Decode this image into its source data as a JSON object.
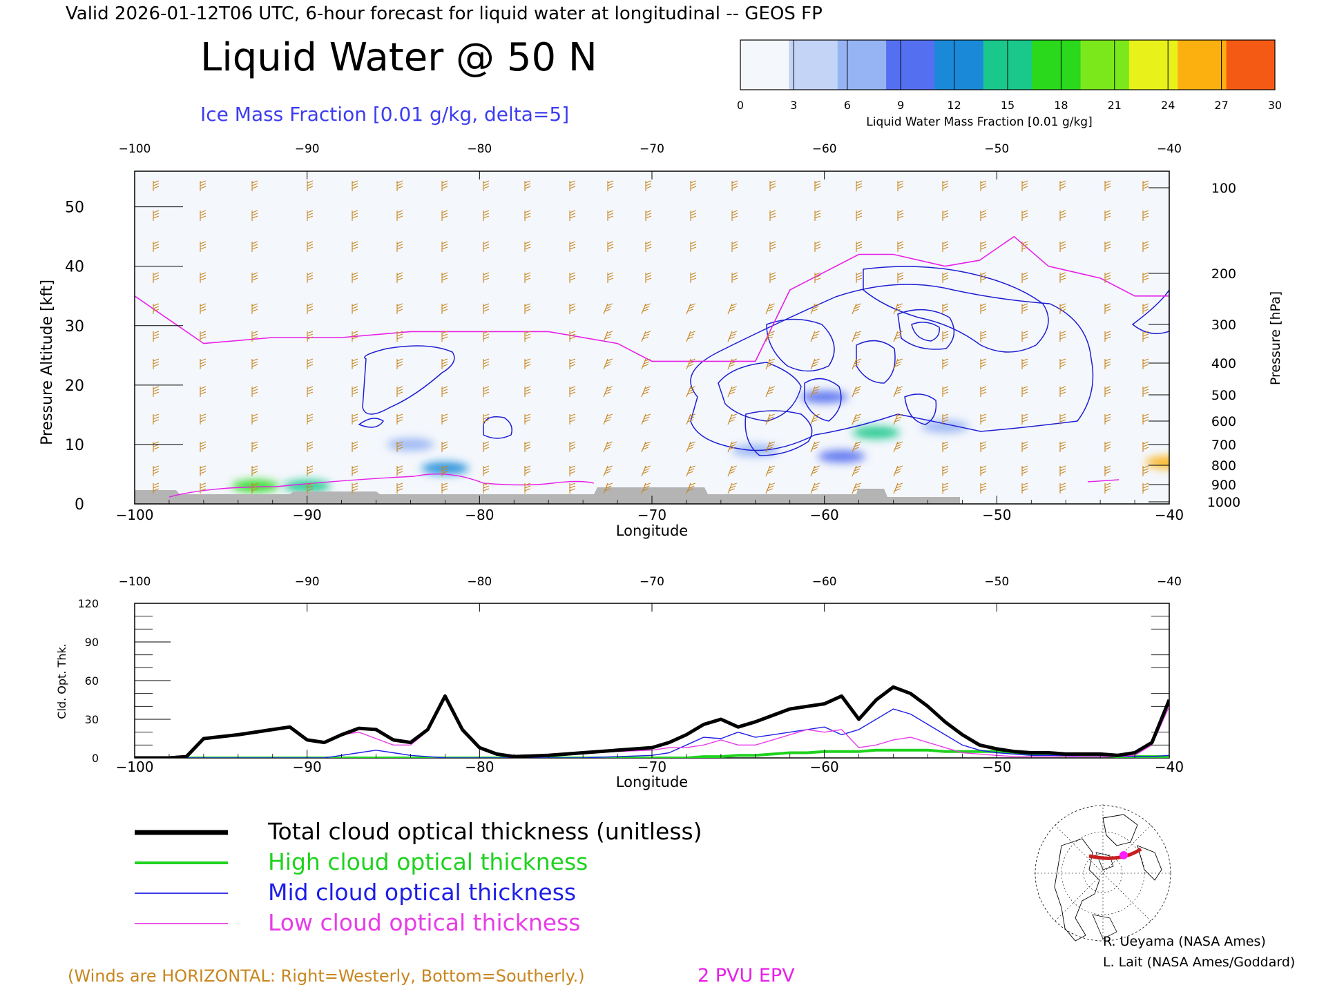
{
  "header": {
    "valid_line": "Valid 2026-01-12T06 UTC, 6-hour forecast for liquid water at longitudinal -- GEOS FP",
    "main_title": "Liquid Water @ 50 N",
    "subtitle": "Ice Mass Fraction [0.01 g/kg, delta=5]"
  },
  "colorbar": {
    "ticks": [
      "0",
      "3",
      "6",
      "9",
      "12",
      "15",
      "18",
      "21",
      "24",
      "27",
      "30"
    ],
    "label": "Liquid Water Mass Fraction [0.01 g/kg]",
    "colors": [
      "#f4f7fc",
      "#c3d4f7",
      "#96b4f4",
      "#5470f0",
      "#1a8ad8",
      "#19c88a",
      "#2ad81c",
      "#7be81c",
      "#e8f21a",
      "#fbb010",
      "#f55a14"
    ]
  },
  "footer": {
    "winds_note": "(Winds are HORIZONTAL: Right=Westerly, Bottom=Southerly.)",
    "epv_label": "2 PVU EPV",
    "credit1": "R. Ueyama (NASA Ames)",
    "credit2": "L. Lait (NASA Ames/Goddard)"
  },
  "colors": {
    "wind_barb": "#c8861e",
    "epv": "#e81ee8",
    "ice": "#1e1ed2",
    "total": "#000000",
    "high": "#1ed21e",
    "mid": "#1e1ee6",
    "low": "#e83ce8",
    "ground": "#b4b4b4"
  },
  "chart_data": [
    {
      "type": "heatmap",
      "title": "Liquid Water @ 50 N",
      "xlabel": "Longitude",
      "ylabel": "Pressure Altitude [kft]",
      "ylabel_right": "Pressure [hPa]",
      "xlim": [
        -100,
        -40
      ],
      "ylim": [
        0,
        56
      ],
      "x_ticks": [
        "-100",
        "-90",
        "-80",
        "-70",
        "-60",
        "-50",
        "-40"
      ],
      "y_ticks": [
        "0",
        "10",
        "20",
        "30",
        "40",
        "50"
      ],
      "right_ticks": [
        "100",
        "200",
        "300",
        "400",
        "500",
        "600",
        "700",
        "800",
        "900",
        "1000"
      ],
      "epv_2pvu_kft": [
        [
          -100,
          35
        ],
        [
          -98,
          31
        ],
        [
          -96,
          27
        ],
        [
          -92,
          28
        ],
        [
          -88,
          28
        ],
        [
          -84,
          29
        ],
        [
          -80,
          29
        ],
        [
          -76,
          29
        ],
        [
          -72,
          27
        ],
        [
          -70,
          24
        ],
        [
          -68,
          24
        ],
        [
          -64,
          24
        ],
        [
          -62,
          36
        ],
        [
          -58,
          42
        ],
        [
          -56,
          42
        ],
        [
          -53,
          40
        ],
        [
          -51,
          41
        ],
        [
          -49,
          45
        ],
        [
          -47,
          40
        ],
        [
          -44,
          38
        ],
        [
          -42,
          35
        ],
        [
          -40,
          35
        ]
      ],
      "liquid_water_blobs": [
        {
          "lon": -93,
          "kft": 3,
          "value": 18
        },
        {
          "lon": -90,
          "kft": 3,
          "value": 15
        },
        {
          "lon": -82,
          "kft": 6,
          "value": 14
        },
        {
          "lon": -84,
          "kft": 10,
          "value": 6
        },
        {
          "lon": -60,
          "kft": 18,
          "value": 9
        },
        {
          "lon": -57,
          "kft": 12,
          "value": 16
        },
        {
          "lon": -59,
          "kft": 8,
          "value": 9
        },
        {
          "lon": -64,
          "kft": 9,
          "value": 6
        },
        {
          "lon": -53,
          "kft": 13,
          "value": 7
        },
        {
          "lon": -40,
          "kft": 7,
          "value": 27
        }
      ]
    },
    {
      "type": "line",
      "xlabel": "Longitude",
      "ylabel": "Cld. Opt. Thk.",
      "xlim": [
        -100,
        -40
      ],
      "ylim": [
        0,
        120
      ],
      "x_ticks": [
        "-100",
        "-90",
        "-80",
        "-70",
        "-60",
        "-50",
        "-40"
      ],
      "y_ticks": [
        "0",
        "30",
        "60",
        "90",
        "120"
      ],
      "x": [
        -100,
        -98,
        -97,
        -96,
        -94,
        -92,
        -91,
        -90,
        -89,
        -88,
        -87,
        -86,
        -85,
        -84,
        -83,
        -82,
        -81,
        -80,
        -79,
        -78,
        -76,
        -74,
        -72,
        -70,
        -69,
        -68,
        -67,
        -66,
        -65,
        -64,
        -63,
        -62,
        -61,
        -60,
        -59,
        -58,
        -57,
        -56,
        -55,
        -54,
        -53,
        -52,
        -51,
        -50,
        -49,
        -48,
        -47,
        -46,
        -45,
        -44,
        -43,
        -42,
        -41,
        -40
      ],
      "series": [
        {
          "name": "Total cloud optical thickness (unitless)",
          "values": [
            0,
            0,
            1,
            15,
            18,
            22,
            24,
            14,
            12,
            18,
            23,
            22,
            14,
            12,
            22,
            48,
            22,
            8,
            3,
            1,
            2,
            4,
            6,
            8,
            12,
            18,
            26,
            30,
            24,
            28,
            33,
            38,
            40,
            42,
            48,
            30,
            45,
            55,
            50,
            40,
            28,
            18,
            10,
            7,
            5,
            4,
            4,
            3,
            3,
            3,
            2,
            4,
            12,
            45
          ]
        },
        {
          "name": "High cloud optical thickness",
          "values": [
            0,
            0,
            0,
            0,
            0,
            0,
            0,
            0,
            0,
            0,
            0,
            0,
            0,
            0,
            0,
            0,
            0,
            0,
            0,
            0,
            0,
            0,
            0,
            0,
            0,
            0,
            1,
            1,
            2,
            2,
            3,
            4,
            4,
            5,
            5,
            5,
            6,
            6,
            6,
            6,
            5,
            5,
            5,
            5,
            4,
            3,
            3,
            2,
            2,
            2,
            1,
            1,
            1,
            1
          ]
        },
        {
          "name": "Mid cloud optical thickness",
          "values": [
            0,
            0,
            0,
            0,
            0,
            0,
            0,
            0,
            0,
            2,
            4,
            6,
            4,
            2,
            1,
            0,
            0,
            0,
            0,
            0,
            0,
            0,
            1,
            2,
            4,
            10,
            16,
            15,
            20,
            16,
            18,
            20,
            22,
            24,
            18,
            22,
            30,
            38,
            34,
            26,
            18,
            10,
            6,
            4,
            3,
            2,
            2,
            2,
            1,
            1,
            1,
            1,
            1,
            2
          ]
        },
        {
          "name": "Low cloud optical thickness",
          "values": [
            0,
            0,
            1,
            15,
            18,
            22,
            24,
            14,
            12,
            18,
            20,
            15,
            10,
            10,
            21,
            47,
            21,
            8,
            3,
            1,
            2,
            4,
            5,
            6,
            8,
            8,
            10,
            14,
            10,
            10,
            14,
            18,
            22,
            20,
            22,
            8,
            10,
            14,
            16,
            12,
            8,
            4,
            3,
            2,
            1,
            1,
            1,
            1,
            1,
            1,
            1,
            2,
            10,
            40
          ]
        }
      ]
    }
  ]
}
